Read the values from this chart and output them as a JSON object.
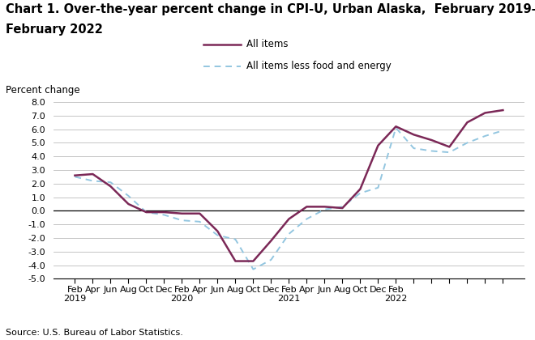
{
  "title_line1": "Chart 1. Over-the-year percent change in CPI-U, Urban Alaska,  February 2019–",
  "title_line2": "February 2022",
  "ylabel": "Percent change",
  "source": "Source: U.S. Bureau of Labor Statistics.",
  "ylim": [
    -5.0,
    8.0
  ],
  "yticks": [
    -5.0,
    -4.0,
    -3.0,
    -2.0,
    -1.0,
    0.0,
    1.0,
    2.0,
    3.0,
    4.0,
    5.0,
    6.0,
    7.0,
    8.0
  ],
  "all_items": {
    "label": "All items",
    "color": "#7B2857",
    "linewidth": 1.8
  },
  "core_items": {
    "label": "All items less food and energy",
    "color": "#93C6E0",
    "linewidth": 1.4
  },
  "all_items_values": [
    2.6,
    2.7,
    1.8,
    0.5,
    -0.1,
    -0.1,
    -0.2,
    -0.2,
    -1.5,
    -3.7,
    -3.7,
    -2.2,
    -0.6,
    0.3,
    0.3,
    0.2,
    1.6,
    4.8,
    6.2,
    5.6,
    5.2,
    4.7,
    6.5,
    7.2,
    7.4
  ],
  "core_items_values": [
    2.5,
    2.2,
    2.1,
    1.1,
    -0.1,
    -0.3,
    -0.7,
    -0.8,
    -1.8,
    -2.1,
    -4.3,
    -3.6,
    -1.7,
    -0.6,
    0.1,
    0.3,
    1.3,
    1.7,
    6.1,
    4.6,
    4.4,
    4.3,
    5.0,
    5.5,
    5.9
  ],
  "background_color": "#ffffff",
  "grid_color": "#bbbbbb",
  "title_fontsize": 10.5,
  "label_fontsize": 8.5,
  "tick_fontsize": 8.0,
  "source_fontsize": 8.0
}
